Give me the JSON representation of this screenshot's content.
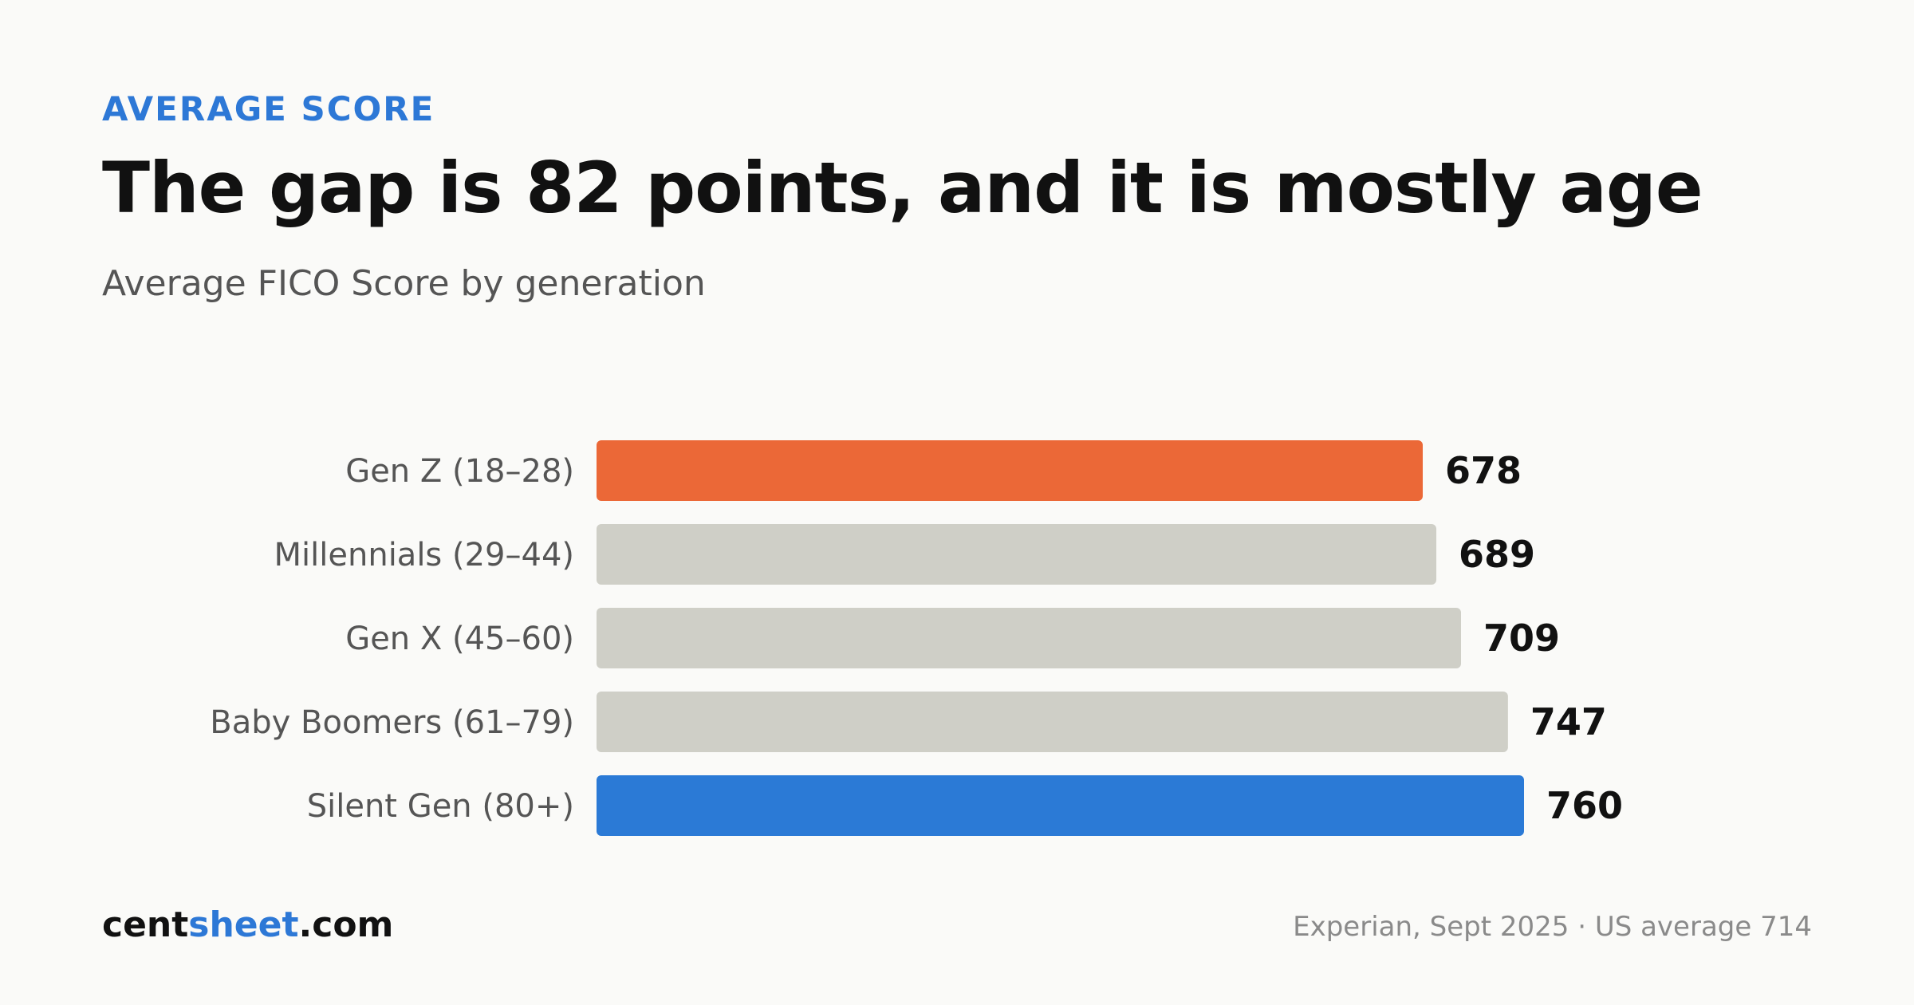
{
  "eyebrow": "AVERAGE SCORE",
  "title": "The gap is 82 points, and it is mostly age",
  "subtitle": "Average FICO Score by generation",
  "brand": {
    "part1": "cent",
    "part2": "sheet",
    "part3": ".com"
  },
  "source": "Experian, Sept 2025 · US average 714",
  "colors": {
    "highlight_low": "#eb6837",
    "highlight_high": "#2b7ad6",
    "neutral": "#cfcfc7",
    "accent": "#2d78d6"
  },
  "chart_data": {
    "type": "bar",
    "orientation": "horizontal",
    "categories": [
      "Gen Z (18–28)",
      "Millennials (29–44)",
      "Gen X (45–60)",
      "Baby Boomers (61–79)",
      "Silent Gen (80+)"
    ],
    "values": [
      678,
      689,
      709,
      747,
      760
    ],
    "bar_colors": [
      "#eb6837",
      "#cfcfc7",
      "#cfcfc7",
      "#cfcfc7",
      "#2b7ad6"
    ],
    "value_labels": [
      "678",
      "689",
      "709",
      "747",
      "760"
    ],
    "xlim": [
      0,
      760
    ],
    "xlabel": "",
    "ylabel": "",
    "grid": false
  }
}
